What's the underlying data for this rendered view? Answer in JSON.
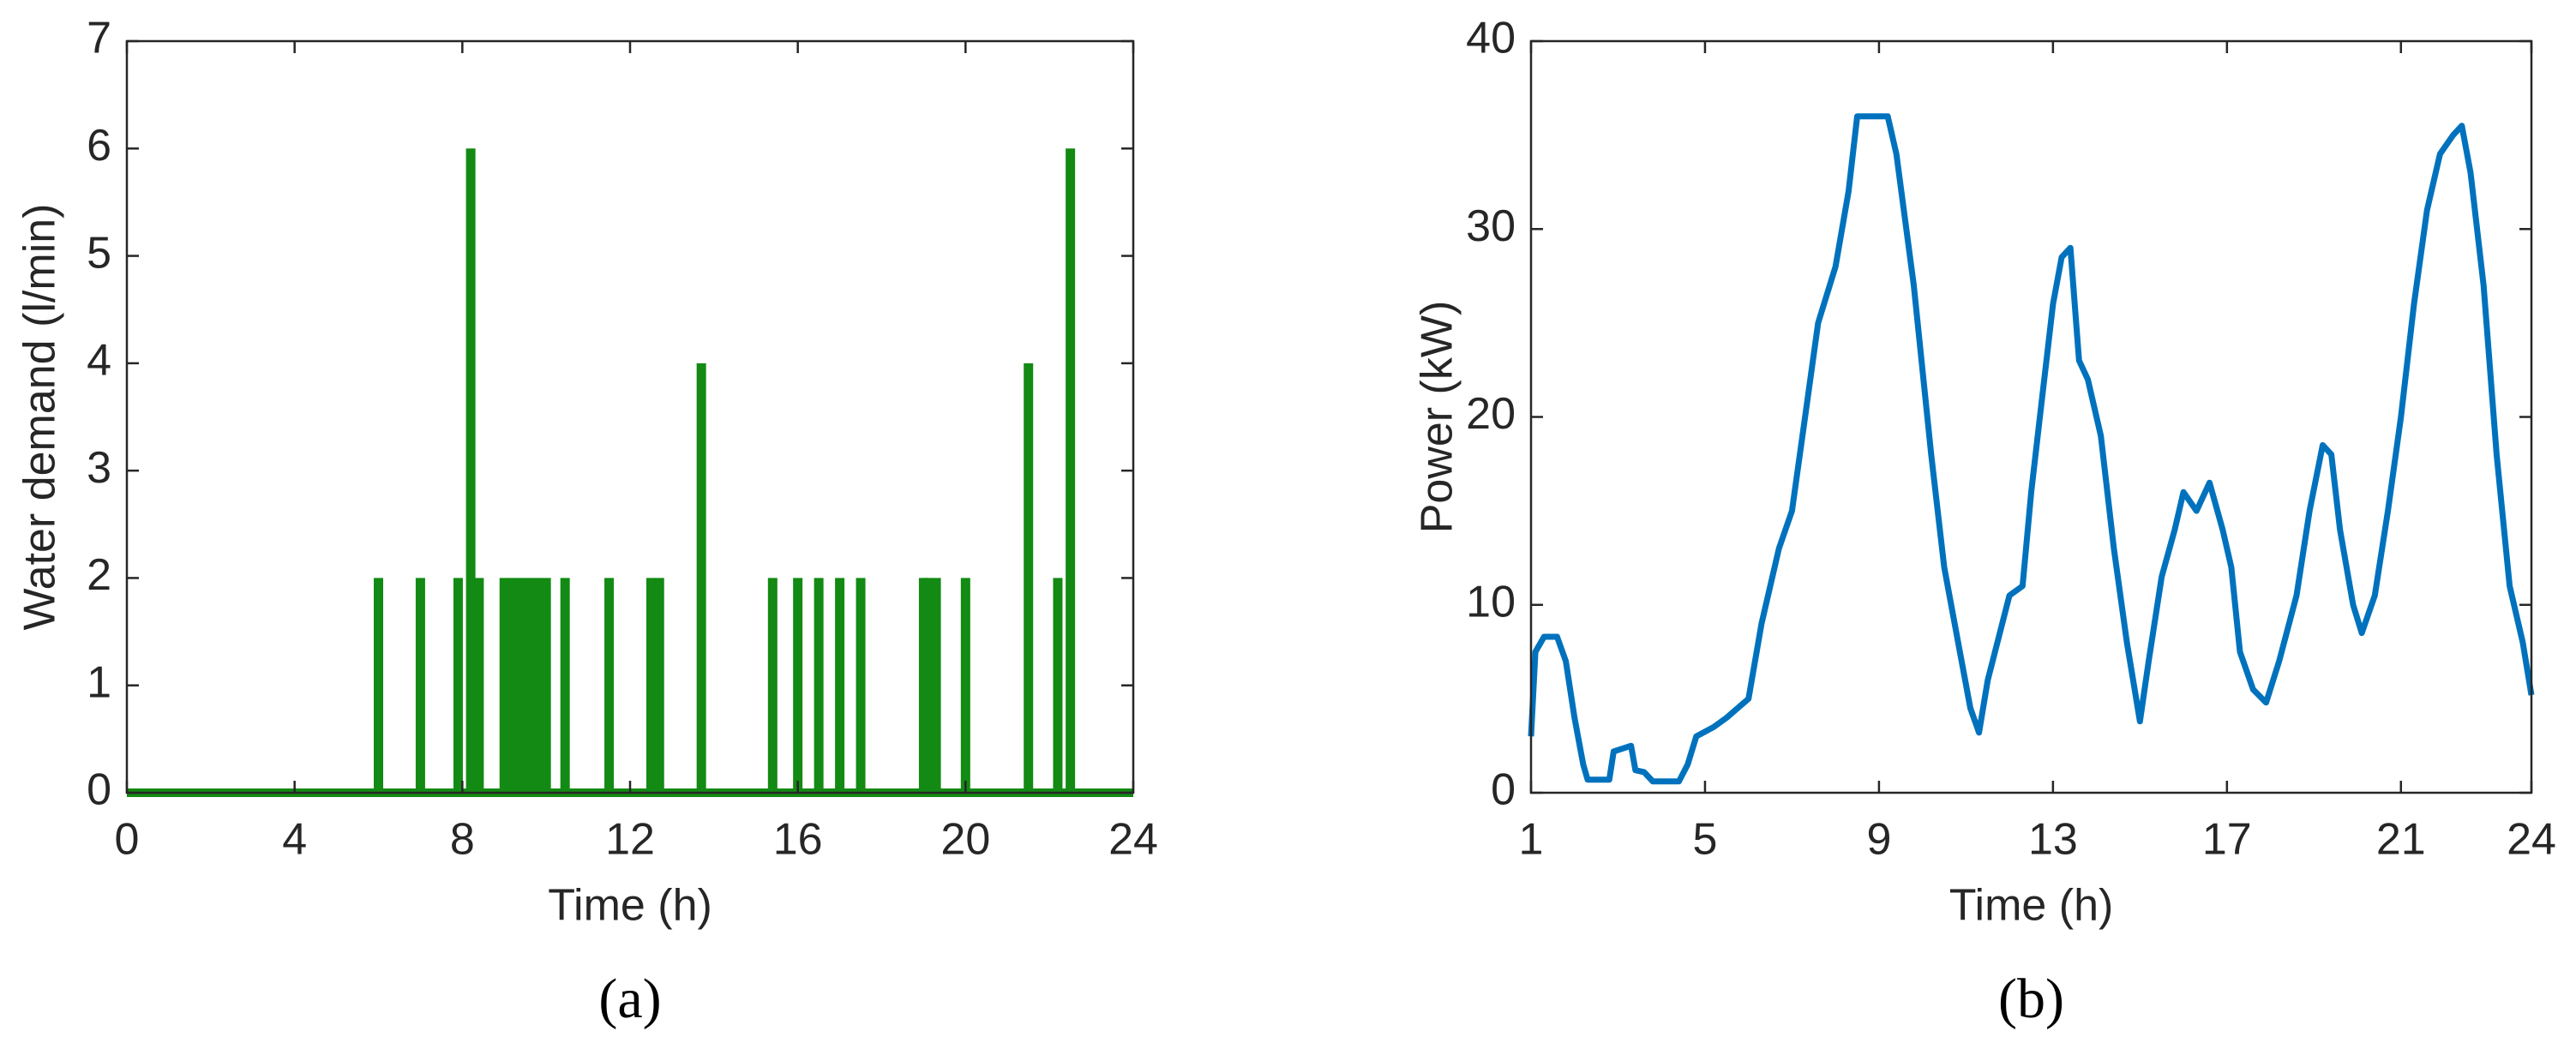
{
  "chart_data": [
    {
      "type": "stem",
      "title": "(a)",
      "xlabel": "Time (h)",
      "ylabel": "Water demand (l/min)",
      "color": "#138a13",
      "x": [
        6,
        7,
        7.9,
        8.2,
        8.4,
        9,
        9.2,
        9.4,
        9.6,
        9.8,
        10,
        10.45,
        11.5,
        12.5,
        12.7,
        13.7,
        15.4,
        16,
        16.5,
        17,
        17.5,
        19,
        19.1,
        19.3,
        20,
        21.5,
        22.2,
        22.5
      ],
      "values": [
        2,
        2,
        2,
        6,
        2,
        2,
        2,
        2,
        2,
        2,
        2,
        2,
        2,
        2,
        2,
        4,
        2,
        2,
        2,
        2,
        2,
        2,
        2,
        2,
        2,
        4,
        2,
        6
      ],
      "xlim": [
        0,
        24
      ],
      "xticks": [
        0,
        4,
        8,
        12,
        16,
        20,
        24
      ],
      "ylim": [
        0,
        7
      ],
      "yticks": [
        0,
        1,
        2,
        3,
        4,
        5,
        6,
        7
      ]
    },
    {
      "type": "line",
      "title": "(b)",
      "xlabel": "Time (h)",
      "ylabel": "Power (kW)",
      "color": "#0072bd",
      "x": [
        1.0,
        1.1,
        1.3,
        1.6,
        1.8,
        2.0,
        2.2,
        2.3,
        2.8,
        2.9,
        3.3,
        3.4,
        3.6,
        3.8,
        4.4,
        4.6,
        4.8,
        5.2,
        5.5,
        6.0,
        6.3,
        6.7,
        7.0,
        7.3,
        7.6,
        8.0,
        8.3,
        8.5,
        9.2,
        9.4,
        9.8,
        10.2,
        10.5,
        10.9,
        11.1,
        11.3,
        11.5,
        12.0,
        12.3,
        12.5,
        12.7,
        13.0,
        13.2,
        13.4,
        13.6,
        13.8,
        14.1,
        14.4,
        14.7,
        15.0,
        15.2,
        15.5,
        15.8,
        16.0,
        16.3,
        16.6,
        16.9,
        17.1,
        17.3,
        17.6,
        17.9,
        18.2,
        18.6,
        18.9,
        19.2,
        19.4,
        19.6,
        19.9,
        20.1,
        20.4,
        20.7,
        21.0,
        21.3,
        21.6,
        21.9,
        22.2,
        22.4,
        22.6,
        22.9,
        23.2,
        23.5,
        23.8,
        24.0
      ],
      "values": [
        3,
        7.5,
        8.3,
        8.3,
        7,
        4,
        1.5,
        0.7,
        0.7,
        2.2,
        2.5,
        1.2,
        1.1,
        0.6,
        0.6,
        1.5,
        3,
        3.5,
        4,
        5,
        9,
        13,
        15,
        20,
        25,
        28,
        32,
        36,
        36,
        34,
        27,
        18,
        12,
        7,
        4.5,
        3.2,
        6,
        10.5,
        11,
        16,
        20,
        26,
        28.5,
        29,
        23,
        22,
        19,
        13,
        8,
        3.8,
        7,
        11.5,
        14,
        16,
        15,
        16.5,
        14,
        12,
        7.5,
        5.5,
        4.8,
        7,
        10.5,
        15,
        18.5,
        18,
        14,
        10,
        8.5,
        10.5,
        15,
        20,
        26,
        31,
        34,
        35,
        35.5,
        33,
        27,
        18,
        11,
        8,
        5.2
      ],
      "xlim": [
        1,
        24
      ],
      "xticks": [
        1,
        5,
        9,
        13,
        17,
        21,
        24
      ],
      "ylim": [
        0,
        40
      ],
      "yticks": [
        0,
        10,
        20,
        30,
        40
      ]
    }
  ]
}
